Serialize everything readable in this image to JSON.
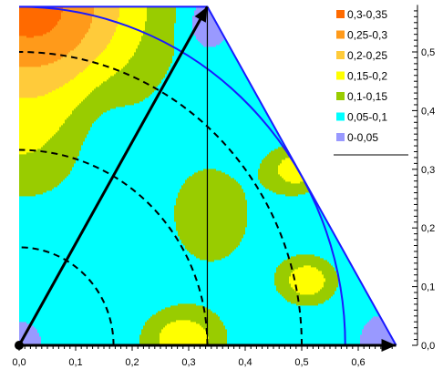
{
  "chart_data": {
    "type": "heatmap",
    "title": "",
    "xlabel": "",
    "ylabel": "",
    "xlim": [
      0,
      0.667
    ],
    "ylim": [
      0,
      0.577
    ],
    "grid": false,
    "legend_position": "top-right",
    "x_ticks": [
      "0,0",
      "0,1",
      "0,2",
      "0,3",
      "0,4",
      "0,5",
      "0,6"
    ],
    "x_tick_values": [
      0,
      0.1,
      0.2,
      0.3,
      0.4,
      0.5,
      0.6
    ],
    "y_ticks": [
      "0,0",
      "0,1",
      "0,2",
      "0,3",
      "0,4",
      "0,5"
    ],
    "y_tick_values": [
      0,
      0.1,
      0.2,
      0.3,
      0.4,
      0.5
    ],
    "legend": [
      {
        "label": "0,3-0,35",
        "color": "#ff6a00"
      },
      {
        "label": "0,25-0,3",
        "color": "#ff9a1a"
      },
      {
        "label": "0,2-0,25",
        "color": "#ffcb3a"
      },
      {
        "label": "0,15-0,2",
        "color": "#ffff00"
      },
      {
        "label": "0,1-0,15",
        "color": "#99cc00"
      },
      {
        "label": "0,05-0,1",
        "color": "#00ffff"
      },
      {
        "label": "0-0,05",
        "color": "#9999ff"
      }
    ],
    "region": {
      "vertices": [
        [
          0,
          0
        ],
        [
          0,
          0.577
        ],
        [
          0.333,
          0.577
        ],
        [
          0.667,
          0
        ]
      ]
    },
    "arcs": [
      {
        "radius": 0.167,
        "style": "dashed"
      },
      {
        "radius": 0.333,
        "style": "dashed"
      },
      {
        "radius": 0.5,
        "style": "dashed"
      },
      {
        "radius": 0.577,
        "style": "solid"
      }
    ],
    "arrows": [
      {
        "from": [
          0,
          0
        ],
        "to": [
          0.333,
          0.577
        ]
      },
      {
        "from": [
          0,
          0
        ],
        "to": [
          0.667,
          0
        ]
      }
    ],
    "vertical_line_x": 0.333
  }
}
